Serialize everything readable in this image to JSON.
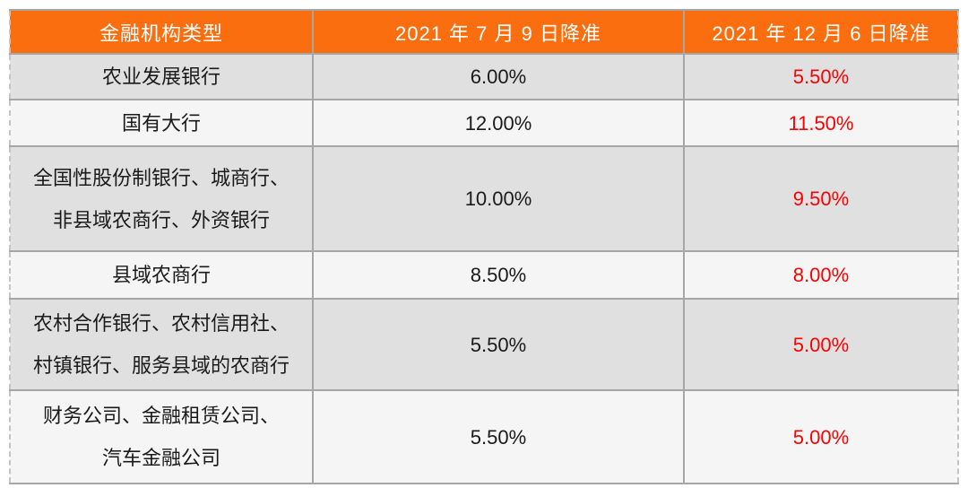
{
  "colors": {
    "accent": "#FA6E0F",
    "highlight": "#FE0000",
    "row_gray": "#E0E0E0",
    "row_light": "#F5F5F5",
    "border": "#A6A6A6",
    "dash": "#C4C4C4",
    "header_text": "#FFFFFF",
    "body_text": "#1A1A1A"
  },
  "chart_data": {
    "type": "table",
    "columns": [
      "金融机构类型",
      "2021 年 7 月 9 日降准",
      "2021 年 12 月 6 日降准"
    ],
    "rows": [
      {
        "institution": "农业发展银行",
        "cut_2021_07_09": "6.00%",
        "cut_2021_12_06": "5.50%"
      },
      {
        "institution": "国有大行",
        "cut_2021_07_09": "12.00%",
        "cut_2021_12_06": "11.50%"
      },
      {
        "institution": "全国性股份制银行、城商行、\n非县域农商行、外资银行",
        "cut_2021_07_09": "10.00%",
        "cut_2021_12_06": "9.50%"
      },
      {
        "institution": "县域农商行",
        "cut_2021_07_09": "8.50%",
        "cut_2021_12_06": "8.00%"
      },
      {
        "institution": "农村合作银行、农村信用社、\n村镇银行、服务县域的农商行",
        "cut_2021_07_09": "5.50%",
        "cut_2021_12_06": "5.00%"
      },
      {
        "institution": "财务公司、金融租赁公司、\n汽车金融公司",
        "cut_2021_07_09": "5.50%",
        "cut_2021_12_06": "5.00%"
      }
    ]
  }
}
